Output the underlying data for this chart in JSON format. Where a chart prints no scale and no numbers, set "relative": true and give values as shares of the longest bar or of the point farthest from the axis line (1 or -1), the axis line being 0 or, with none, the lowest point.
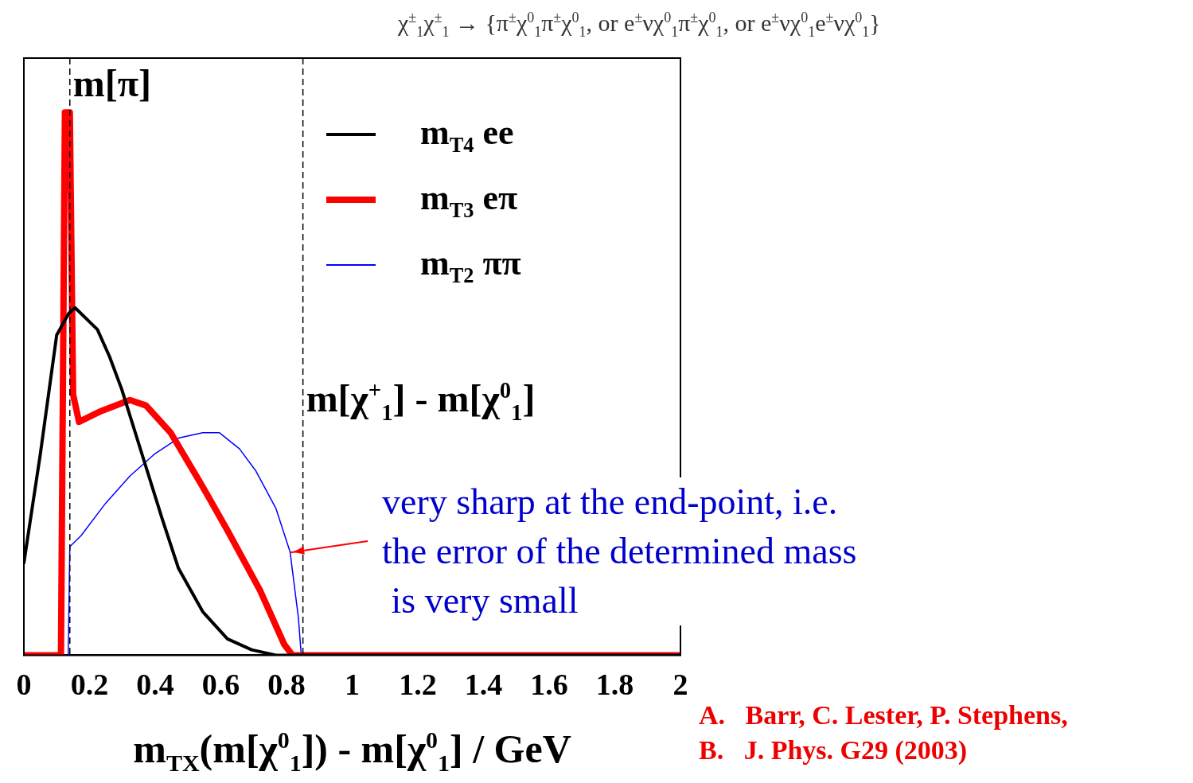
{
  "chart_data": {
    "type": "line",
    "relative": true,
    "title": "χ$^{±}$$_{1}$χ$^{±}$$_{1}$ → {π$^{±}$χ$^{0}$$_{1}$π$^{±}$χ$^{0}$$_{1}$, or e$^{±}$νχ$^{0}$$_{1}$π$^{±}$χ$^{0}$$_{1}$, or e$^{±}$νχ$^{0}$$_{1}$e$^{±}$νχ$^{0}$$_{1}$}",
    "xlabel": "m$_{TX}$(m[χ$^{0}$$_{1}$]) - m[χ$^{0}$$_{1}$] / GeV",
    "xlim": [
      0,
      2
    ],
    "xticks": [
      0,
      0.2,
      0.4,
      0.6,
      0.8,
      1,
      1.2,
      1.4,
      1.6,
      1.8,
      2
    ],
    "grid": false,
    "legend": "top right",
    "marker": "none",
    "line_style": "solid",
    "series": [
      {
        "name": "m$_{T4}$ ee",
        "color": "#000000",
        "x": [
          0,
          0.05,
          0.1,
          0.137,
          0.156,
          0.224,
          0.261,
          0.298,
          0.36,
          0.422,
          0.471,
          0.545,
          0.62,
          0.694,
          0.768,
          2
        ],
        "values": [
          0.17,
          0.37,
          0.59,
          0.63,
          0.64,
          0.6,
          0.55,
          0.49,
          0.37,
          0.25,
          0.16,
          0.08,
          0.03,
          0.01,
          0,
          0
        ]
      },
      {
        "name": "m$_{T3}$ eπ",
        "color": "#ff0000",
        "x": [
          0,
          0.11,
          0.113,
          0.125,
          0.14,
          0.15,
          0.168,
          0.236,
          0.323,
          0.372,
          0.447,
          0.545,
          0.62,
          0.719,
          0.793,
          0.818,
          2
        ],
        "values": [
          0,
          0,
          0,
          1,
          1,
          0.48,
          0.43,
          0.45,
          0.47,
          0.46,
          0.41,
          0.31,
          0.23,
          0.12,
          0.02,
          0,
          0
        ]
      },
      {
        "name": "m$_{T2}$ ππ",
        "color": "#0000ff",
        "x": [
          0,
          0.135,
          0.14,
          0.174,
          0.249,
          0.323,
          0.397,
          0.471,
          0.545,
          0.595,
          0.657,
          0.706,
          0.768,
          0.811,
          0.836,
          0.845,
          2
        ],
        "values": [
          0,
          0,
          0.2,
          0.22,
          0.28,
          0.33,
          0.37,
          0.4,
          0.41,
          0.41,
          0.38,
          0.34,
          0.27,
          0.19,
          0.07,
          0,
          0
        ]
      }
    ],
    "ref_lines": [
      {
        "axis": "x",
        "value": 0.14,
        "label": "m[π]",
        "color": "#000000",
        "line_style": "dashed"
      },
      {
        "axis": "x",
        "value": 0.85,
        "label": "m[χ$^{+}$$_{1}$] - m[χ$^{0}$$_{1}$]",
        "color": "#000000",
        "line_style": "dashed"
      }
    ],
    "annotations": [
      {
        "text": "very sharp at the end-point, i.e.\nthe error of the determined mass\n is very small",
        "x": 0.82,
        "y": 0.19
      },
      "A.   Barr, C. Lester, P. Stephens,",
      "B.   J. Phys. G29 (2003)"
    ]
  }
}
